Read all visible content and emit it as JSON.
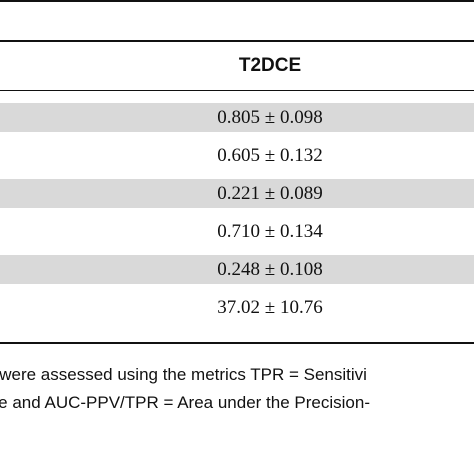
{
  "table": {
    "header": "T2DCE",
    "rows": [
      {
        "value": "0.805 ± 0.098",
        "shaded": true
      },
      {
        "value": "0.605 ± 0.132",
        "shaded": false
      },
      {
        "value": "0.221 ± 0.089",
        "shaded": true
      },
      {
        "value": "0.710 ± 0.134",
        "shaded": false
      },
      {
        "value": "0.248 ± 0.108",
        "shaded": true
      },
      {
        "value": "37.02 ± 10.76",
        "shaded": false
      }
    ]
  },
  "footnote": {
    "line1": "x were assessed using the metrics TPR = Sensitivi",
    "line2": "rve and AUC-PPV/TPR = Area under the Precision-"
  }
}
